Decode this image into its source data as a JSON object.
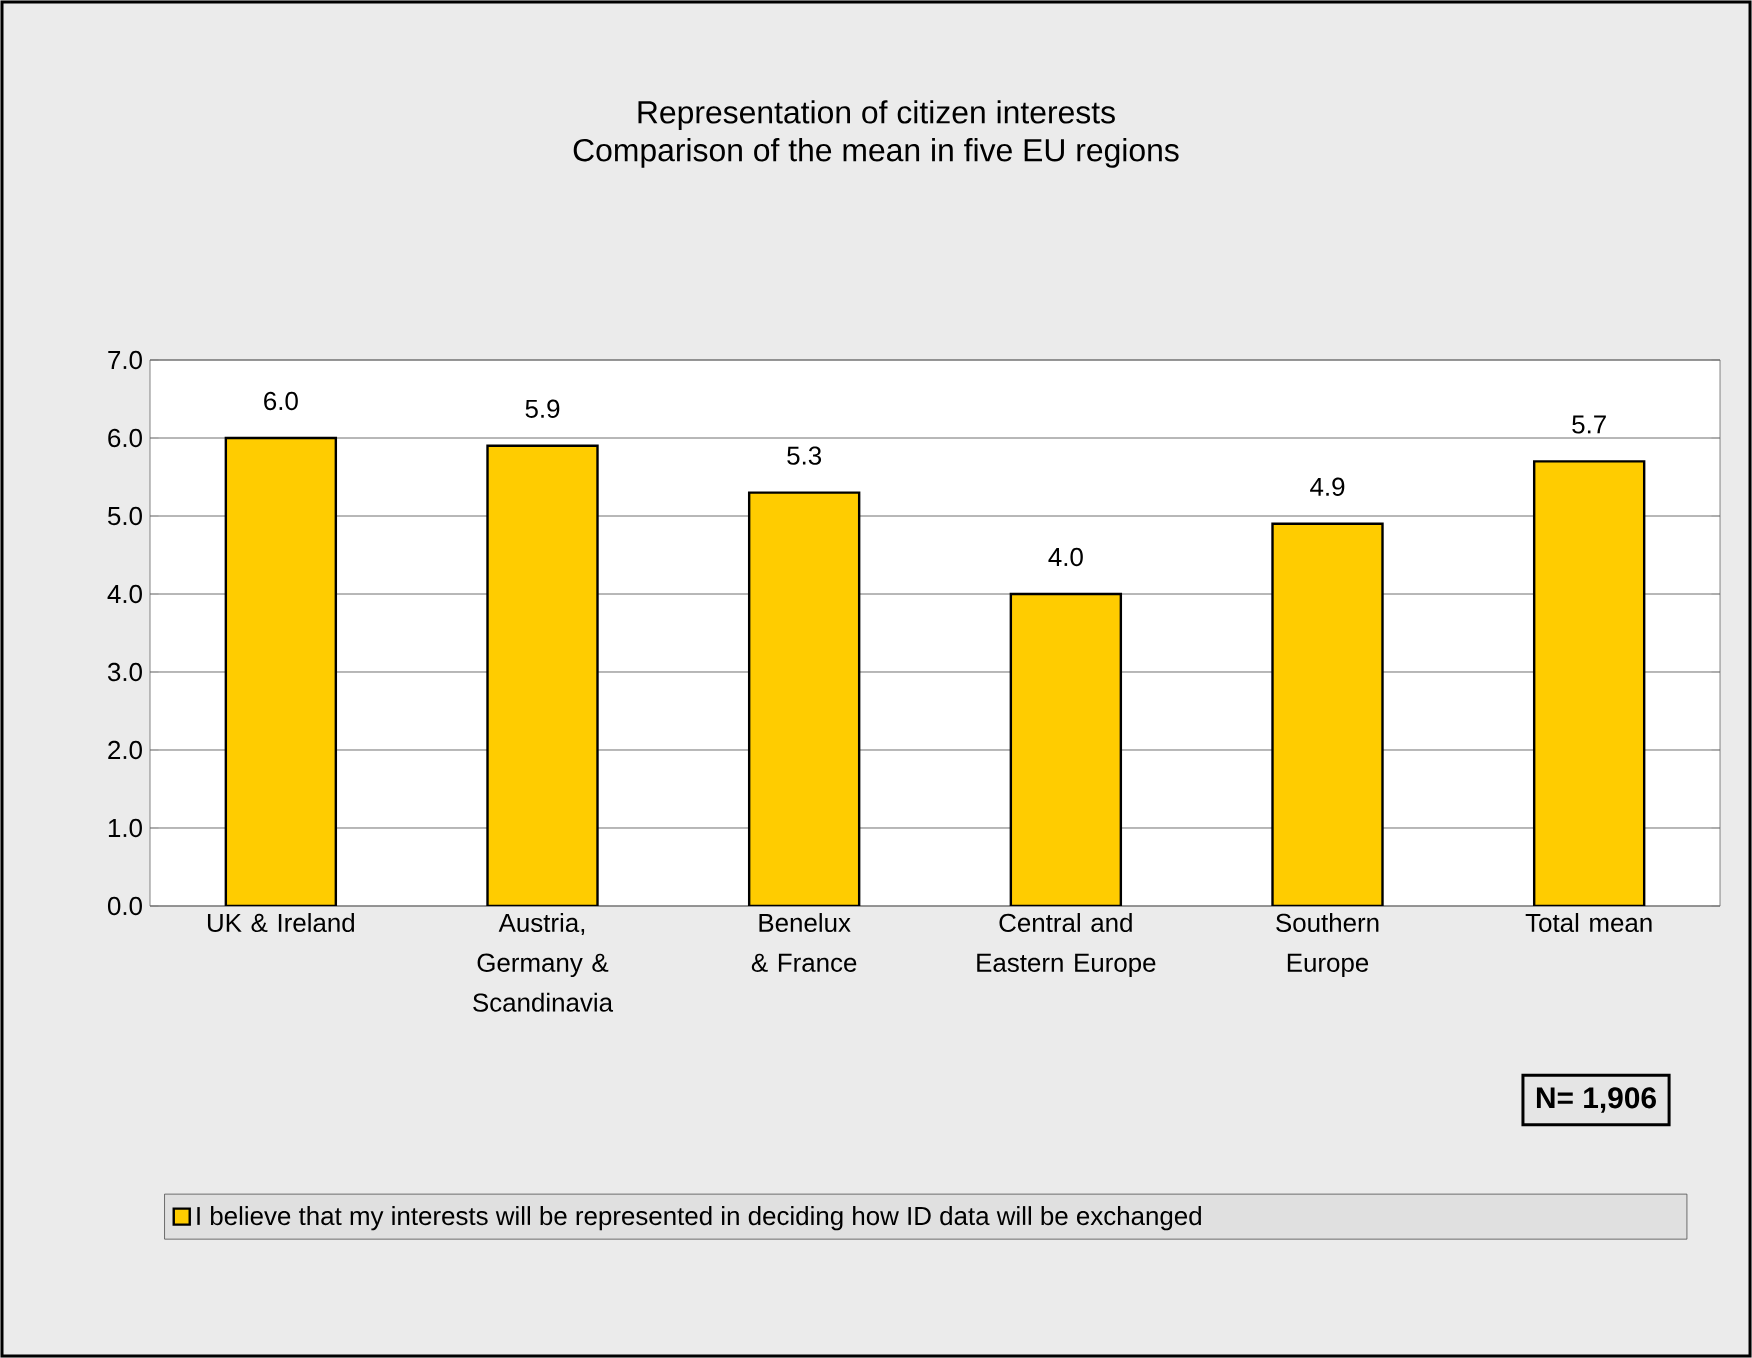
{
  "chart_data": {
    "type": "bar",
    "title": "Representation of citizen interests",
    "subtitle": "Comparison of the mean in five EU regions",
    "categories": [
      "UK & Ireland",
      "Austria, Germany & Scandinavia",
      "Benelux & France",
      "Central and Eastern Europe",
      "Southern Europe",
      "Total mean"
    ],
    "series": [
      {
        "name": "I believe that my interests will be represented in deciding how ID data will be exchanged",
        "color": "#ffcc00",
        "values": [
          6.0,
          5.9,
          5.3,
          4.0,
          4.9,
          5.7
        ]
      }
    ],
    "ylim": [
      0,
      7
    ],
    "yticks": [
      {
        "value": 0,
        "label": "0.0"
      },
      {
        "value": 1,
        "label": "1.0"
      },
      {
        "value": 2,
        "label": "2.0"
      },
      {
        "value": 3,
        "label": "3.0"
      },
      {
        "value": 4,
        "label": "4.0"
      },
      {
        "value": 5,
        "label": "5.0"
      },
      {
        "value": 6,
        "label": "6.0"
      },
      {
        "value": 7,
        "label": "7.0"
      }
    ],
    "value_labels": [
      "6.0",
      "5.9",
      "5.3",
      "4.0",
      "4.9",
      "5.7"
    ],
    "grid": "y",
    "legend": "bottom",
    "annotations": [
      "N= 1,906"
    ]
  }
}
